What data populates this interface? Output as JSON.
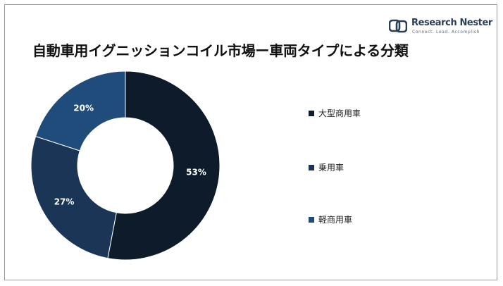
{
  "brand": {
    "name": "Research Nester",
    "tagline": "Connect. Lead. Accomplish"
  },
  "chart_data": {
    "type": "pie",
    "variant": "donut",
    "title": "自動車用イグニッションコイル市場ー車両タイプによる分類",
    "categories": [
      "大型商用車",
      "乗用車",
      "軽商用車"
    ],
    "values": [
      53,
      27,
      20
    ],
    "value_labels": [
      "53%",
      "27%",
      "20%"
    ],
    "colors": [
      "#0d1b2a",
      "#1b3556",
      "#1f4c7a"
    ],
    "legend_position": "right"
  }
}
